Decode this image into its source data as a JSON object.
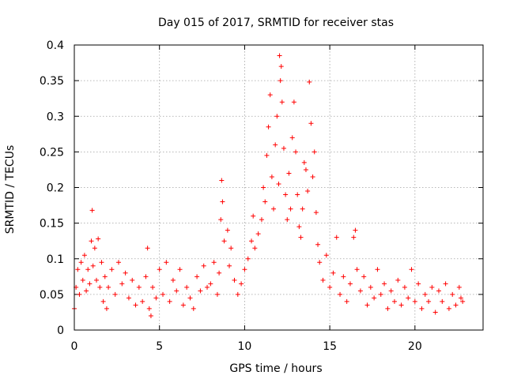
{
  "chart_data": {
    "type": "scatter",
    "title": "Day 015 of 2017, SRMTID for receiver stas",
    "xlabel": "GPS time / hours",
    "ylabel": "SRMTID / TECUs",
    "xlim": [
      0,
      24
    ],
    "ylim": [
      0,
      0.4
    ],
    "x_ticks": [
      0,
      5,
      10,
      15,
      20
    ],
    "x_tick_labels": [
      "0",
      "5",
      "10",
      "15",
      "20"
    ],
    "y_ticks": [
      0,
      0.05,
      0.1,
      0.15,
      0.2,
      0.25,
      0.3,
      0.35,
      0.4
    ],
    "y_tick_labels": [
      "0",
      "0.05",
      "0.1",
      "0.15",
      "0.2",
      "0.25",
      "0.3",
      "0.35",
      "0.4"
    ],
    "grid": true,
    "marker": "+",
    "marker_color": "#ff0000",
    "x_range_of_data": [
      0,
      22.8
    ],
    "series": [
      {
        "name": "SRMTID",
        "points": [
          [
            0.0,
            0.03
          ],
          [
            0.1,
            0.06
          ],
          [
            0.2,
            0.085
          ],
          [
            0.3,
            0.05
          ],
          [
            0.4,
            0.095
          ],
          [
            0.5,
            0.07
          ],
          [
            0.6,
            0.105
          ],
          [
            0.7,
            0.055
          ],
          [
            0.8,
            0.085
          ],
          [
            0.9,
            0.065
          ],
          [
            1.0,
            0.125
          ],
          [
            1.05,
            0.168
          ],
          [
            1.1,
            0.09
          ],
          [
            1.2,
            0.115
          ],
          [
            1.3,
            0.07
          ],
          [
            1.4,
            0.128
          ],
          [
            1.5,
            0.06
          ],
          [
            1.6,
            0.095
          ],
          [
            1.7,
            0.04
          ],
          [
            1.8,
            0.075
          ],
          [
            1.9,
            0.03
          ],
          [
            2.0,
            0.06
          ],
          [
            2.2,
            0.085
          ],
          [
            2.4,
            0.05
          ],
          [
            2.6,
            0.095
          ],
          [
            2.8,
            0.065
          ],
          [
            3.0,
            0.08
          ],
          [
            3.2,
            0.045
          ],
          [
            3.4,
            0.07
          ],
          [
            3.6,
            0.035
          ],
          [
            3.8,
            0.06
          ],
          [
            4.0,
            0.04
          ],
          [
            4.2,
            0.075
          ],
          [
            4.3,
            0.115
          ],
          [
            4.4,
            0.03
          ],
          [
            4.5,
            0.02
          ],
          [
            4.6,
            0.06
          ],
          [
            4.8,
            0.045
          ],
          [
            5.0,
            0.085
          ],
          [
            5.2,
            0.05
          ],
          [
            5.4,
            0.095
          ],
          [
            5.6,
            0.04
          ],
          [
            5.8,
            0.07
          ],
          [
            6.0,
            0.055
          ],
          [
            6.2,
            0.085
          ],
          [
            6.4,
            0.035
          ],
          [
            6.6,
            0.06
          ],
          [
            6.8,
            0.045
          ],
          [
            7.0,
            0.03
          ],
          [
            7.2,
            0.075
          ],
          [
            7.4,
            0.055
          ],
          [
            7.6,
            0.09
          ],
          [
            7.8,
            0.06
          ],
          [
            8.0,
            0.065
          ],
          [
            8.2,
            0.095
          ],
          [
            8.4,
            0.05
          ],
          [
            8.5,
            0.08
          ],
          [
            8.6,
            0.155
          ],
          [
            8.65,
            0.21
          ],
          [
            8.7,
            0.18
          ],
          [
            8.8,
            0.125
          ],
          [
            9.0,
            0.14
          ],
          [
            9.1,
            0.09
          ],
          [
            9.2,
            0.115
          ],
          [
            9.4,
            0.07
          ],
          [
            9.6,
            0.05
          ],
          [
            9.8,
            0.065
          ],
          [
            10.0,
            0.085
          ],
          [
            10.2,
            0.1
          ],
          [
            10.4,
            0.125
          ],
          [
            10.5,
            0.16
          ],
          [
            10.6,
            0.115
          ],
          [
            10.8,
            0.135
          ],
          [
            11.0,
            0.155
          ],
          [
            11.1,
            0.2
          ],
          [
            11.2,
            0.18
          ],
          [
            11.3,
            0.245
          ],
          [
            11.4,
            0.285
          ],
          [
            11.5,
            0.33
          ],
          [
            11.6,
            0.215
          ],
          [
            11.7,
            0.17
          ],
          [
            11.8,
            0.26
          ],
          [
            11.9,
            0.3
          ],
          [
            12.0,
            0.205
          ],
          [
            12.05,
            0.385
          ],
          [
            12.1,
            0.35
          ],
          [
            12.15,
            0.37
          ],
          [
            12.2,
            0.32
          ],
          [
            12.3,
            0.255
          ],
          [
            12.4,
            0.19
          ],
          [
            12.5,
            0.155
          ],
          [
            12.6,
            0.22
          ],
          [
            12.7,
            0.17
          ],
          [
            12.8,
            0.27
          ],
          [
            12.9,
            0.32
          ],
          [
            13.0,
            0.25
          ],
          [
            13.1,
            0.19
          ],
          [
            13.2,
            0.145
          ],
          [
            13.3,
            0.13
          ],
          [
            13.4,
            0.17
          ],
          [
            13.5,
            0.235
          ],
          [
            13.6,
            0.225
          ],
          [
            13.7,
            0.195
          ],
          [
            13.8,
            0.348
          ],
          [
            13.9,
            0.29
          ],
          [
            14.0,
            0.215
          ],
          [
            14.1,
            0.25
          ],
          [
            14.2,
            0.165
          ],
          [
            14.3,
            0.12
          ],
          [
            14.4,
            0.095
          ],
          [
            14.6,
            0.07
          ],
          [
            14.8,
            0.105
          ],
          [
            15.0,
            0.06
          ],
          [
            15.2,
            0.08
          ],
          [
            15.4,
            0.13
          ],
          [
            15.6,
            0.05
          ],
          [
            15.8,
            0.075
          ],
          [
            16.0,
            0.04
          ],
          [
            16.2,
            0.065
          ],
          [
            16.4,
            0.13
          ],
          [
            16.5,
            0.14
          ],
          [
            16.6,
            0.085
          ],
          [
            16.8,
            0.055
          ],
          [
            17.0,
            0.075
          ],
          [
            17.2,
            0.035
          ],
          [
            17.4,
            0.06
          ],
          [
            17.6,
            0.045
          ],
          [
            17.8,
            0.085
          ],
          [
            18.0,
            0.05
          ],
          [
            18.2,
            0.065
          ],
          [
            18.4,
            0.03
          ],
          [
            18.6,
            0.055
          ],
          [
            18.8,
            0.04
          ],
          [
            19.0,
            0.07
          ],
          [
            19.2,
            0.035
          ],
          [
            19.4,
            0.06
          ],
          [
            19.6,
            0.045
          ],
          [
            19.8,
            0.085
          ],
          [
            20.0,
            0.04
          ],
          [
            20.2,
            0.065
          ],
          [
            20.4,
            0.03
          ],
          [
            20.6,
            0.05
          ],
          [
            20.8,
            0.04
          ],
          [
            21.0,
            0.06
          ],
          [
            21.2,
            0.025
          ],
          [
            21.4,
            0.055
          ],
          [
            21.6,
            0.04
          ],
          [
            21.8,
            0.065
          ],
          [
            22.0,
            0.03
          ],
          [
            22.2,
            0.05
          ],
          [
            22.4,
            0.035
          ],
          [
            22.6,
            0.06
          ],
          [
            22.7,
            0.045
          ],
          [
            22.8,
            0.04
          ]
        ]
      }
    ]
  }
}
